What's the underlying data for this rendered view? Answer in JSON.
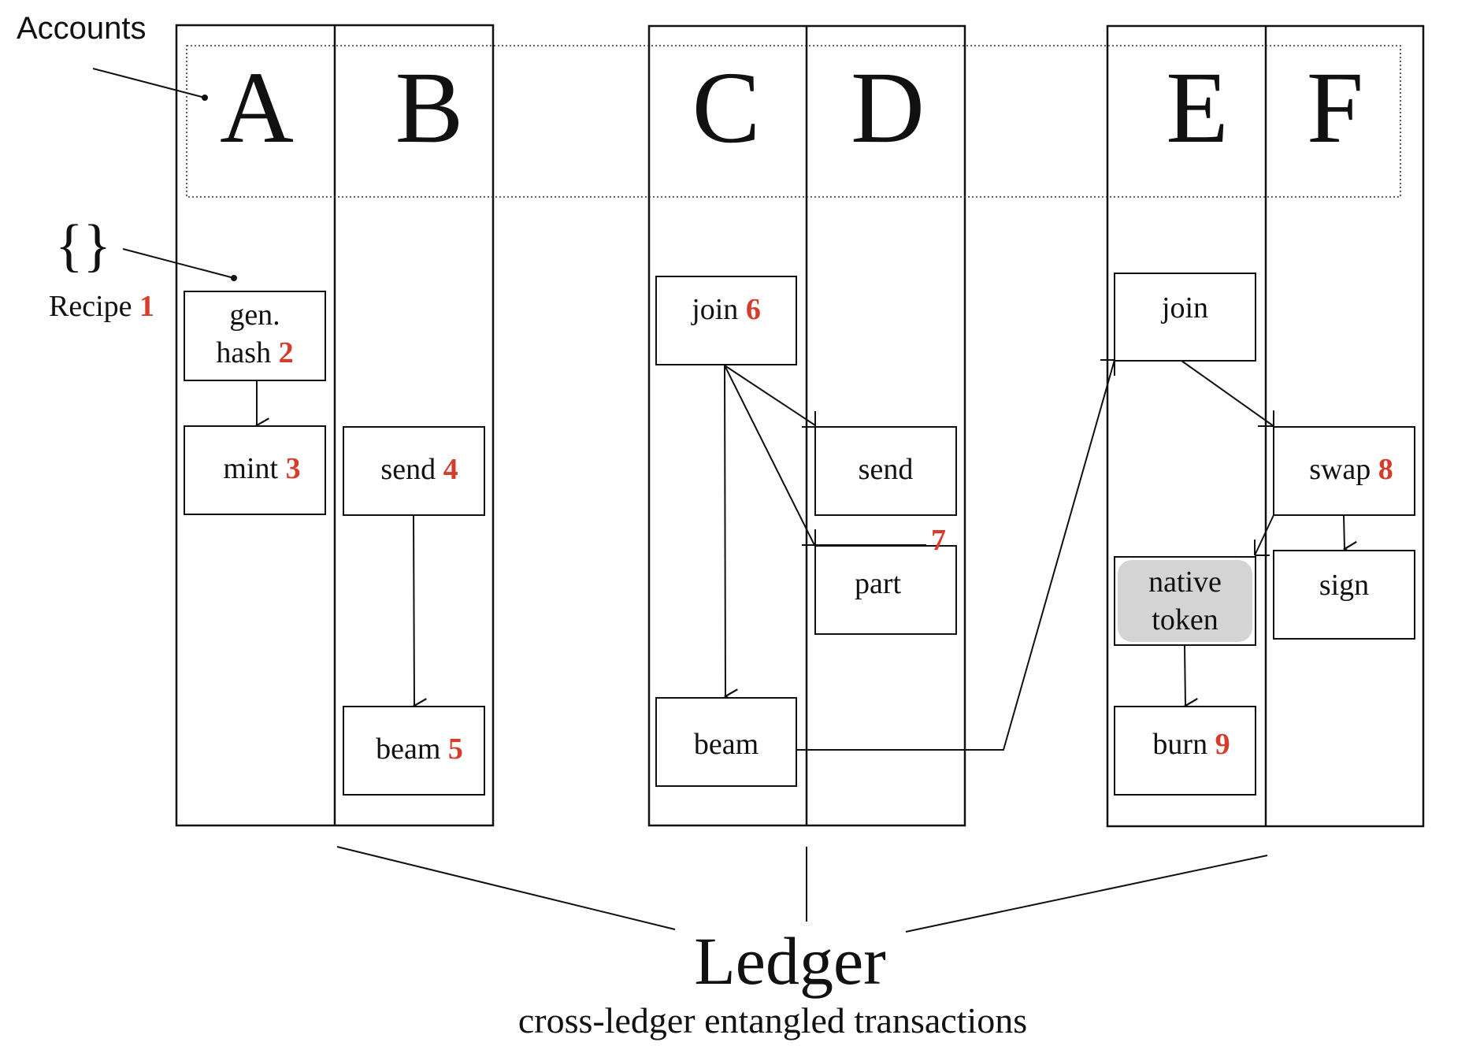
{
  "labels": {
    "accounts": "Accounts",
    "braces": "{}",
    "recipe": "Recipe",
    "recipe_num": "1",
    "ledger": "Ledger",
    "caption": "cross-ledger entangled transactions"
  },
  "accounts": [
    "A",
    "B",
    "C",
    "D",
    "E",
    "F"
  ],
  "boxes": {
    "gen_hash": {
      "line1": "gen.",
      "line2": "hash",
      "num": "2"
    },
    "mint": {
      "label": "mint",
      "num": "3"
    },
    "send4": {
      "label": "send",
      "num": "4"
    },
    "beam5": {
      "label": "beam",
      "num": "5"
    },
    "join6": {
      "label": "join",
      "num": "6"
    },
    "send_d": {
      "label": "send"
    },
    "part": {
      "label": "part"
    },
    "num7": "7",
    "beam_c": {
      "label": "beam"
    },
    "join_e": {
      "label": "join"
    },
    "swap": {
      "label": "swap",
      "num": "8"
    },
    "native_token": {
      "line1": "native",
      "line2": "token"
    },
    "sign": {
      "label": "sign"
    },
    "burn": {
      "label": "burn",
      "num": "9"
    }
  },
  "colors": {
    "accent": "#d63b2b",
    "line": "#111111",
    "shade": "#d4d4d4"
  }
}
